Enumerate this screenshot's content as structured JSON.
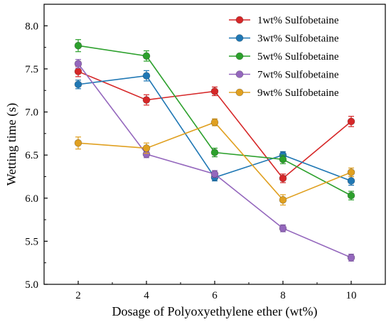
{
  "chart_data": {
    "type": "line",
    "title": "",
    "xlabel": "Dosage of Polyoxyethylene ether (wt%)",
    "ylabel": "Wetting time (s)",
    "x": [
      2,
      4,
      6,
      8,
      10
    ],
    "xlim": [
      1,
      11
    ],
    "ylim": [
      5.0,
      8.25
    ],
    "xticks": [
      "2",
      "4",
      "6",
      "8",
      "10"
    ],
    "yticks": [
      "5.0",
      "5.5",
      "6.0",
      "6.5",
      "7.0",
      "7.5",
      "8.0"
    ],
    "grid": false,
    "legend_position": "top-right",
    "series": [
      {
        "name": "1wt% Sulfobetaine",
        "color": "#d62728",
        "values": [
          7.47,
          7.14,
          7.24,
          6.23,
          6.89
        ],
        "errors": [
          0.06,
          0.06,
          0.05,
          0.05,
          0.06
        ]
      },
      {
        "name": "3wt% Sulfobetaine",
        "color": "#1f77b4",
        "values": [
          7.32,
          7.42,
          6.24,
          6.5,
          6.2
        ],
        "errors": [
          0.05,
          0.06,
          0.04,
          0.04,
          0.05
        ]
      },
      {
        "name": "5wt% Sulfobetaine",
        "color": "#2ca02c",
        "values": [
          7.77,
          7.65,
          6.53,
          6.45,
          6.03
        ],
        "errors": [
          0.07,
          0.06,
          0.05,
          0.05,
          0.05
        ]
      },
      {
        "name": "7wt% Sulfobetaine",
        "color": "#9467bd",
        "values": [
          7.56,
          6.51,
          6.28,
          5.65,
          5.31
        ],
        "errors": [
          0.05,
          0.04,
          0.04,
          0.04,
          0.04
        ]
      },
      {
        "name": "9wt% Sulfobetaine",
        "color": "#e0a020",
        "values": [
          6.64,
          6.58,
          6.88,
          5.98,
          6.3
        ],
        "errors": [
          0.07,
          0.06,
          0.04,
          0.06,
          0.05
        ]
      }
    ]
  }
}
